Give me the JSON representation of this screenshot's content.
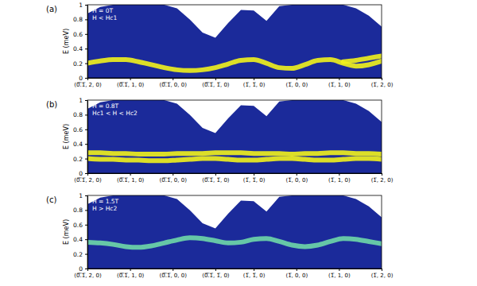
{
  "chart_data": [
    {
      "type": "line",
      "title": "(a)",
      "annotations": [
        "H = 0T",
        "H < Hc1"
      ],
      "ylabel": "E (meV)",
      "xlim": [
        0,
        6.9
      ],
      "xticks": [
        {
          "value": 0,
          "label": "(0̅.̅1̅, 2, 0)"
        },
        {
          "value": 1,
          "label": "(0̅.̅1̅, 1, 0)"
        },
        {
          "value": 2,
          "label": "(0̅.̅1̅, 0, 0)"
        },
        {
          "value": 3,
          "label": "(0̅.̅1̅, 1̅, 0)"
        },
        {
          "value": 3.9,
          "label": "(1̅, 1̅, 0)"
        },
        {
          "value": 4.9,
          "label": "(1̅, 0, 0)"
        },
        {
          "value": 5.9,
          "label": "(1̅, 1, 0)"
        },
        {
          "value": 6.9,
          "label": "(1̅, 2, 0)"
        }
      ],
      "ylim": [
        0,
        1
      ],
      "yticks": [
        0,
        0.2,
        0.4,
        0.6,
        0.8,
        1
      ],
      "x": [
        0,
        0.3,
        0.6,
        0.9,
        1.2,
        1.5,
        1.8,
        2.1,
        2.4,
        2.7,
        3.0,
        3.3,
        3.6,
        3.9,
        4.2,
        4.5,
        4.8,
        5.1,
        5.4,
        5.7,
        6.0,
        6.3,
        6.6,
        6.9
      ],
      "series": [
        {
          "type": "area",
          "color": "#1b2a9a",
          "values": [
            0.88,
            0.97,
            1,
            1,
            1,
            1,
            1,
            0.95,
            0.8,
            0.62,
            0.55,
            0.75,
            0.93,
            0.92,
            0.78,
            0.98,
            1,
            1,
            1,
            1,
            1,
            0.95,
            0.85,
            0.7
          ]
        },
        {
          "type": "line",
          "color": "#f2f21c",
          "values": [
            0.2,
            0.23,
            0.25,
            0.25,
            0.22,
            0.18,
            0.14,
            0.11,
            0.1,
            0.11,
            0.14,
            0.19,
            0.24,
            0.25,
            0.2,
            0.14,
            0.13,
            0.18,
            0.24,
            0.25,
            0.2,
            0.16,
            0.18,
            0.23
          ]
        },
        {
          "type": "line",
          "color": "#f2f21c",
          "values": [
            null,
            null,
            null,
            null,
            null,
            null,
            null,
            null,
            null,
            null,
            null,
            null,
            null,
            null,
            null,
            null,
            null,
            null,
            null,
            null,
            0.22,
            0.24,
            0.27,
            0.3
          ]
        }
      ]
    },
    {
      "type": "line",
      "title": "(b)",
      "annotations": [
        "H = 0.8T",
        "Hc1 < H < Hc2"
      ],
      "ylabel": "E (meV)",
      "xlim": [
        0,
        6.9
      ],
      "xticks": [
        {
          "value": 0,
          "label": "(0̅.̅1̅, 2, 0)"
        },
        {
          "value": 1,
          "label": "(0̅.̅1̅, 1, 0)"
        },
        {
          "value": 2,
          "label": "(0̅.̅1̅, 0, 0)"
        },
        {
          "value": 3,
          "label": "(0̅.̅1̅, 1̅, 0)"
        },
        {
          "value": 3.9,
          "label": "(1̅, 1̅, 0)"
        },
        {
          "value": 4.9,
          "label": "(1̅, 0, 0)"
        },
        {
          "value": 5.9,
          "label": "(1̅, 1, 0)"
        },
        {
          "value": 6.9,
          "label": "(1̅, 2, 0)"
        }
      ],
      "ylim": [
        0,
        1
      ],
      "yticks": [
        0,
        0.2,
        0.4,
        0.6,
        0.8,
        1
      ],
      "x": [
        0,
        0.3,
        0.6,
        0.9,
        1.2,
        1.5,
        1.8,
        2.1,
        2.4,
        2.7,
        3.0,
        3.3,
        3.6,
        3.9,
        4.2,
        4.5,
        4.8,
        5.1,
        5.4,
        5.7,
        6.0,
        6.3,
        6.6,
        6.9
      ],
      "series": [
        {
          "type": "area",
          "color": "#1b2a9a",
          "values": [
            0.88,
            0.97,
            1,
            1,
            1,
            1,
            1,
            0.95,
            0.8,
            0.62,
            0.55,
            0.75,
            0.93,
            0.92,
            0.78,
            0.98,
            1,
            1,
            1,
            1,
            1,
            0.95,
            0.85,
            0.7
          ]
        },
        {
          "type": "line",
          "color": "#f2f21c",
          "values": [
            0.28,
            0.28,
            0.27,
            0.27,
            0.26,
            0.26,
            0.26,
            0.27,
            0.27,
            0.27,
            0.28,
            0.28,
            0.28,
            0.27,
            0.27,
            0.27,
            0.26,
            0.27,
            0.27,
            0.28,
            0.28,
            0.27,
            0.27,
            0.26
          ]
        },
        {
          "type": "line",
          "color": "#f2f21c",
          "values": [
            0.2,
            0.19,
            0.19,
            0.18,
            0.18,
            0.17,
            0.17,
            0.18,
            0.19,
            0.2,
            0.2,
            0.19,
            0.18,
            0.18,
            0.19,
            0.2,
            0.2,
            0.19,
            0.18,
            0.18,
            0.19,
            0.2,
            0.2,
            0.19
          ]
        }
      ]
    },
    {
      "type": "line",
      "title": "(c)",
      "annotations": [
        "H = 1.5T",
        "H > Hc2"
      ],
      "ylabel": "E (meV)",
      "xlim": [
        0,
        6.9
      ],
      "xticks": [
        {
          "value": 0,
          "label": "(0̅.̅1̅, 2, 0)"
        },
        {
          "value": 1,
          "label": "(0̅.̅1̅, 1, 0)"
        },
        {
          "value": 2,
          "label": "(0̅.̅1̅, 0, 0)"
        },
        {
          "value": 3,
          "label": "(0̅.̅1̅, 1̅, 0)"
        },
        {
          "value": 3.9,
          "label": "(1̅, 1̅, 0)"
        },
        {
          "value": 4.9,
          "label": "(1̅, 0, 0)"
        },
        {
          "value": 5.9,
          "label": "(1̅, 1, 0)"
        },
        {
          "value": 6.9,
          "label": "(1̅, 2, 0)"
        }
      ],
      "ylim": [
        0,
        1
      ],
      "yticks": [
        0,
        0.2,
        0.4,
        0.6,
        0.8,
        1
      ],
      "x": [
        0,
        0.3,
        0.6,
        0.9,
        1.2,
        1.5,
        1.8,
        2.1,
        2.4,
        2.7,
        3.0,
        3.3,
        3.6,
        3.9,
        4.2,
        4.5,
        4.8,
        5.1,
        5.4,
        5.7,
        6.0,
        6.3,
        6.6,
        6.9
      ],
      "series": [
        {
          "type": "area",
          "color": "#1b2a9a",
          "values": [
            0.88,
            0.97,
            1,
            1,
            1,
            1,
            1,
            0.95,
            0.8,
            0.62,
            0.55,
            0.75,
            0.93,
            0.92,
            0.78,
            0.98,
            1,
            1,
            1,
            1,
            1,
            0.95,
            0.85,
            0.7
          ]
        },
        {
          "type": "line",
          "color": "#6fd8a8",
          "values": [
            0.36,
            0.35,
            0.33,
            0.3,
            0.29,
            0.31,
            0.35,
            0.39,
            0.42,
            0.41,
            0.38,
            0.35,
            0.36,
            0.4,
            0.41,
            0.37,
            0.32,
            0.3,
            0.32,
            0.37,
            0.41,
            0.4,
            0.37,
            0.34
          ]
        }
      ]
    }
  ]
}
